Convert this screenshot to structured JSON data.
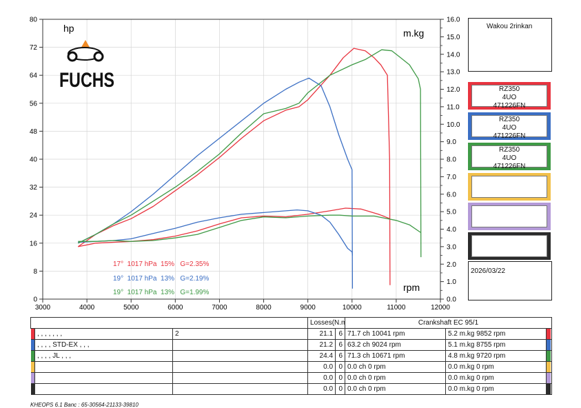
{
  "brand": {
    "name": "FUCHS"
  },
  "station": "Wakou 2rinkan",
  "date": "2026/03/22",
  "runs": [
    {
      "line1": "RZ350",
      "line2": "4UO",
      "line3": "471226FN",
      "color": "#e8343f"
    },
    {
      "line1": "RZ350",
      "line2": "4UO",
      "line3": "471226FN",
      "color": "#3b6fc4"
    },
    {
      "line1": "RZ350",
      "line2": "4UO",
      "line3": "471226FN",
      "color": "#3f9a46"
    },
    {
      "line1": "",
      "line2": "",
      "line3": "",
      "color": "#f2c04a"
    },
    {
      "line1": "",
      "line2": "",
      "line3": "",
      "color": "#b49ad8"
    },
    {
      "line1": "",
      "line2": "",
      "line3": "",
      "color": "#2b2b2b"
    }
  ],
  "chart_data": {
    "type": "line",
    "x_label": "rpm",
    "y_left_label": "hp",
    "y_right_label": "m.kg",
    "xlim": [
      3000,
      12000
    ],
    "ylim_left": [
      0,
      80
    ],
    "ylim_right": [
      0,
      16
    ],
    "x_ticks": [
      "3000",
      "4000",
      "5000",
      "6000",
      "7000",
      "8000",
      "9000",
      "10000",
      "11000",
      "12000"
    ],
    "y_left_ticks": [
      "0",
      "8",
      "16",
      "24",
      "32",
      "40",
      "48",
      "56",
      "64",
      "72",
      "80"
    ],
    "y_right_ticks": [
      "0.0",
      "1.0",
      "2.0",
      "3.0",
      "4.0",
      "5.0",
      "6.0",
      "7.0",
      "8.0",
      "9.0",
      "10.0",
      "11.0",
      "12.0",
      "13.0",
      "14.0",
      "15.0",
      "16.0"
    ],
    "grid": true,
    "conditions": [
      {
        "text": "17°  1017 hPa  15%   G=2.35%",
        "color": "#e8343f"
      },
      {
        "text": "19°  1017 hPa  13%   G=2.19%",
        "color": "#3b6fc4"
      },
      {
        "text": "19°  1017 hPa  13%   G=1.99%",
        "color": "#3f9a46"
      }
    ],
    "series": [
      {
        "color": "#e8343f",
        "axis": "hp",
        "x": [
          3800,
          4200,
          4600,
          5000,
          5500,
          6000,
          6500,
          7000,
          7500,
          8000,
          8500,
          8800,
          9000,
          9500,
          9800,
          10041,
          10300,
          10500,
          10650,
          10800,
          10850,
          10860
        ],
        "y": [
          15,
          18.5,
          21,
          23,
          26.5,
          31,
          35.5,
          40.5,
          46,
          51,
          54,
          55,
          57,
          64,
          69,
          71.7,
          71,
          69,
          67,
          64,
          40,
          4
        ]
      },
      {
        "color": "#e8343f",
        "axis": "torque",
        "x": [
          3800,
          4200,
          4600,
          5000,
          5500,
          6000,
          6500,
          7000,
          7500,
          8000,
          8500,
          9000,
          9500,
          9852,
          10200,
          10600,
          10860
        ],
        "y": [
          3.0,
          3.2,
          3.25,
          3.3,
          3.4,
          3.6,
          3.9,
          4.3,
          4.65,
          4.75,
          4.7,
          4.85,
          5.05,
          5.2,
          5.15,
          4.85,
          4.6
        ]
      },
      {
        "color": "#3b6fc4",
        "axis": "hp",
        "x": [
          3800,
          4200,
          4600,
          5000,
          5500,
          6000,
          6500,
          7000,
          7500,
          8000,
          8500,
          8800,
          9024,
          9300,
          9500,
          9700,
          9900,
          9950,
          10000,
          10010
        ],
        "y": [
          16,
          18.5,
          21.5,
          25,
          30,
          35.5,
          41,
          46,
          51,
          56,
          60,
          62,
          63.2,
          61,
          55,
          47,
          40,
          38.5,
          37,
          3
        ]
      },
      {
        "color": "#3b6fc4",
        "axis": "torque",
        "x": [
          3800,
          4200,
          4600,
          5000,
          5500,
          6000,
          6500,
          7000,
          7500,
          8000,
          8500,
          8755,
          9000,
          9300,
          9500,
          9700,
          9900,
          10000,
          10010
        ],
        "y": [
          3.25,
          3.3,
          3.35,
          3.45,
          3.75,
          4.05,
          4.4,
          4.65,
          4.85,
          4.95,
          5.05,
          5.1,
          5.05,
          4.8,
          4.4,
          3.7,
          2.9,
          2.7,
          2.5
        ]
      },
      {
        "color": "#3f9a46",
        "axis": "hp",
        "x": [
          3800,
          4200,
          4600,
          5000,
          5500,
          6000,
          6500,
          7000,
          7500,
          8000,
          8500,
          8800,
          9000,
          9500,
          10000,
          10300,
          10671,
          10900,
          11100,
          11300,
          11500,
          11550,
          11560
        ],
        "y": [
          16,
          18.5,
          21.5,
          24,
          28,
          32,
          36.5,
          41.5,
          47.5,
          53,
          54.5,
          56,
          59,
          64,
          67,
          68.5,
          71.3,
          71,
          69,
          67,
          63,
          60,
          12
        ]
      },
      {
        "color": "#3f9a46",
        "axis": "torque",
        "x": [
          3800,
          4200,
          4600,
          5000,
          5500,
          6000,
          6500,
          7000,
          7500,
          8000,
          8500,
          9000,
          9500,
          9720,
          10000,
          10500,
          11000,
          11300,
          11560
        ],
        "y": [
          3.3,
          3.3,
          3.35,
          3.3,
          3.35,
          3.5,
          3.7,
          4.1,
          4.5,
          4.7,
          4.65,
          4.75,
          4.8,
          4.8,
          4.75,
          4.75,
          4.5,
          4.25,
          3.8
        ]
      }
    ]
  },
  "table": {
    "header": {
      "losses": "Losses(N.m)",
      "crank": "Crankshaft EC 95/1"
    },
    "rows": [
      {
        "color": "#e8343f",
        "name": ", , , , , , ,",
        "note": "2",
        "loss": "21.1",
        "n": "6",
        "power": "71.7 ch 10041 rpm",
        "torque": "5.2 m.kg 9852 rpm"
      },
      {
        "color": "#3b6fc4",
        "name": ", , , , STD-EX , , ,",
        "note": "",
        "loss": "21.2",
        "n": "6",
        "power": "63.2 ch 9024 rpm",
        "torque": "5.1 m.kg 8755 rpm"
      },
      {
        "color": "#3f9a46",
        "name": ", , , , JL , , ,",
        "note": "",
        "loss": "24.4",
        "n": "6",
        "power": "71.3 ch 10671 rpm",
        "torque": "4.8 m.kg 9720 rpm"
      },
      {
        "color": "#f2c04a",
        "name": "",
        "note": "",
        "loss": "0.0",
        "n": "0",
        "power": "0.0 ch 0 rpm",
        "torque": "0.0 m.kg 0 rpm"
      },
      {
        "color": "#b49ad8",
        "name": "",
        "note": "",
        "loss": "0.0",
        "n": "0",
        "power": "0.0 ch 0 rpm",
        "torque": "0.0 m.kg 0 rpm"
      },
      {
        "color": "#2b2b2b",
        "name": "",
        "note": "",
        "loss": "0.0",
        "n": "0",
        "power": "0.0 ch 0 rpm",
        "torque": "0.0 m.kg 0 rpm"
      }
    ]
  },
  "footer": "KHEOPS 6.1  Banc : 65-30564-21133-39810"
}
